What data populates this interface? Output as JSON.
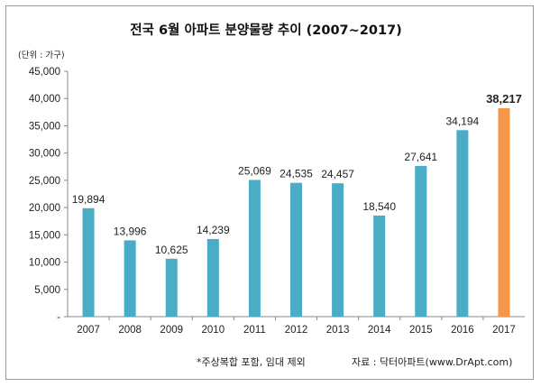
{
  "chart_data": {
    "type": "bar",
    "title": "전국 6월 아파트 분양물량 추이 (2007~2017)",
    "unit_label": "(단위 : 가구)",
    "categories": [
      "2007",
      "2008",
      "2009",
      "2010",
      "2011",
      "2012",
      "2013",
      "2014",
      "2015",
      "2016",
      "2017"
    ],
    "values": [
      19894,
      13996,
      10625,
      14239,
      25069,
      24535,
      24457,
      18540,
      27641,
      34194,
      38217
    ],
    "value_labels": [
      "19,894",
      "13,996",
      "10,625",
      "14,239",
      "25,069",
      "24,535",
      "24,457",
      "18,540",
      "27,641",
      "34,194",
      "38,217"
    ],
    "highlight_index": 10,
    "ylim": [
      0,
      45000
    ],
    "yticks": [
      0,
      5000,
      10000,
      15000,
      20000,
      25000,
      30000,
      35000,
      40000,
      45000
    ],
    "ytick_labels": [
      "-",
      "5,000",
      "10,000",
      "15,000",
      "20,000",
      "25,000",
      "30,000",
      "35,000",
      "40,000",
      "45,000"
    ],
    "grid": false,
    "colors": {
      "bar": "#4bacc6",
      "highlight": "#f79646"
    }
  },
  "footnote": "*주상복합 포함, 임대 제외",
  "source": "자료 : 닥터아파트(www.DrApt.com)"
}
